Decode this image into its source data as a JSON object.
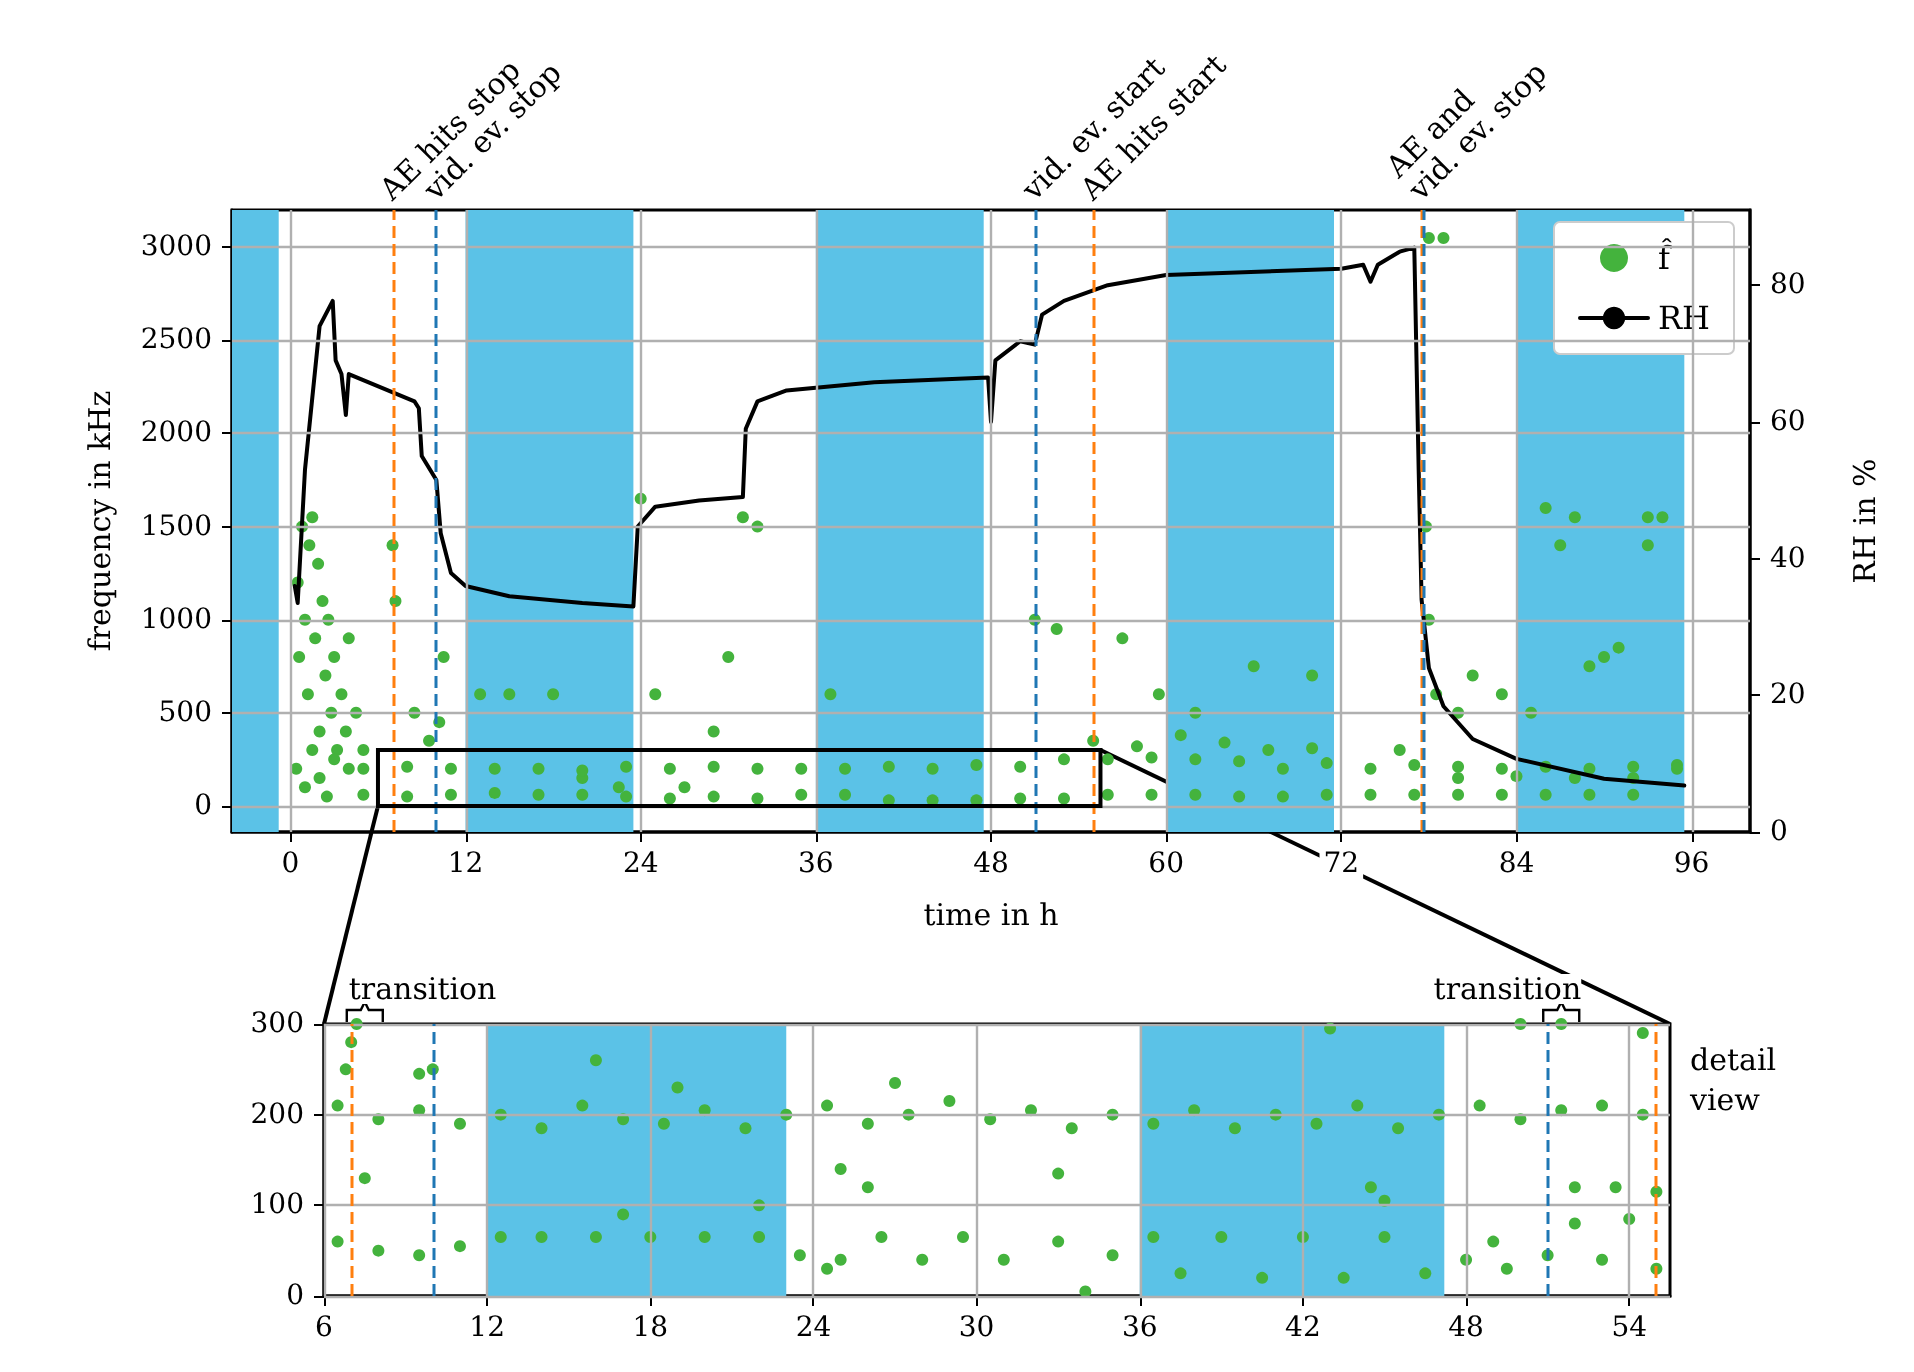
{
  "chart_data": [
    {
      "type": "scatter",
      "xlabel": "time in h",
      "ylabel": "frequency in kHz",
      "y2label": "RH in %",
      "xlim": [
        -4,
        100
      ],
      "xticks": [
        0,
        12,
        24,
        36,
        48,
        60,
        72,
        84,
        96
      ],
      "ylim": [
        -140,
        3200
      ],
      "yticks": [
        0,
        500,
        1000,
        1500,
        2000,
        2500,
        3000
      ],
      "y2lim": [
        0,
        91
      ],
      "y2ticks": [
        0,
        20,
        40,
        60,
        80
      ],
      "grid": true,
      "legend": "top right",
      "bands": [
        {
          "axis": "x",
          "from": -4,
          "to": -0.8,
          "color": "#5bc2e7"
        },
        {
          "axis": "x",
          "from": 12,
          "to": 23.5,
          "color": "#5bc2e7"
        },
        {
          "axis": "x",
          "from": 36,
          "to": 47.5,
          "color": "#5bc2e7"
        },
        {
          "axis": "x",
          "from": 60,
          "to": 71.5,
          "color": "#5bc2e7"
        },
        {
          "axis": "x",
          "from": 84,
          "to": 95.5,
          "color": "#5bc2e7"
        }
      ],
      "ref_lines": [
        {
          "axis": "x",
          "value": 7,
          "label": "AE hits stop",
          "color": "#ff7f0e",
          "line_style": "dashed"
        },
        {
          "axis": "x",
          "value": 10,
          "label": "vid. ev. stop",
          "color": "#1f77b4",
          "line_style": "dashed"
        },
        {
          "axis": "x",
          "value": 51,
          "label": "vid. ev. start",
          "color": "#1f77b4",
          "line_style": "dashed"
        },
        {
          "axis": "x",
          "value": 55,
          "label": "AE hits start",
          "color": "#ff7f0e",
          "line_style": "dashed"
        },
        {
          "axis": "x",
          "value": 77.5,
          "label": "AE and\nvid. ev. stop",
          "color": "#ff7f0e",
          "line_style": "dashed"
        },
        {
          "axis": "x",
          "value": 77.6,
          "label": null,
          "color": "#1f77b4",
          "line_style": "dashed"
        }
      ],
      "series": [
        {
          "name": "f̂",
          "marker": "circle",
          "color": "#44b33d",
          "x": [
            0.5,
            0.6,
            0.8,
            1,
            1.2,
            1.3,
            1.5,
            1.7,
            1.9,
            2,
            2.2,
            2.4,
            2.6,
            2.8,
            3,
            3.2,
            3.5,
            3.8,
            4,
            4.5,
            5,
            0.4,
            1,
            2,
            3,
            4,
            1.5,
            2.5,
            7,
            7.2,
            8.5,
            9.5,
            10.2,
            10.5,
            13,
            15,
            18,
            20,
            22.5,
            24,
            25,
            27,
            29,
            30,
            31,
            32,
            37,
            51,
            52.5,
            57,
            59.5,
            62,
            66,
            70,
            76,
            78,
            79,
            77.8,
            78,
            78.5,
            80,
            81,
            83,
            86,
            87,
            88,
            89,
            91,
            93,
            93,
            85,
            90,
            94,
            5,
            8,
            11,
            14,
            17,
            20,
            23,
            26,
            29,
            32,
            35,
            38,
            41,
            44,
            47,
            50,
            53,
            56,
            59,
            62,
            65,
            68,
            71,
            74,
            77,
            80,
            83,
            86,
            89,
            92,
            95,
            5,
            8,
            11,
            14,
            17,
            20,
            23,
            26,
            29,
            32,
            35,
            38,
            41,
            44,
            47,
            50,
            53,
            56,
            59,
            62,
            65,
            68,
            71,
            74,
            77,
            80,
            83,
            86,
            89,
            92,
            95,
            55,
            58,
            61,
            64,
            67,
            70,
            80,
            84,
            88,
            92
          ],
          "values": [
            1200,
            800,
            1500,
            1000,
            600,
            1400,
            1550,
            900,
            1300,
            400,
            1100,
            700,
            1000,
            500,
            800,
            300,
            600,
            400,
            900,
            500,
            300,
            200,
            100,
            150,
            250,
            200,
            300,
            50,
            1400,
            1100,
            500,
            350,
            450,
            800,
            600,
            600,
            600,
            150,
            100,
            1650,
            600,
            100,
            400,
            800,
            1550,
            1500,
            600,
            1000,
            950,
            900,
            600,
            500,
            750,
            700,
            300,
            3050,
            3050,
            1500,
            1000,
            600,
            500,
            700,
            600,
            1600,
            1400,
            1550,
            750,
            850,
            1400,
            1550,
            500,
            800,
            1550,
            60,
            50,
            60,
            70,
            60,
            60,
            50,
            40,
            50,
            40,
            60,
            60,
            30,
            30,
            30,
            40,
            40,
            60,
            60,
            60,
            50,
            50,
            60,
            60,
            60,
            60,
            60,
            60,
            60,
            60,
            220,
            200,
            210,
            200,
            200,
            200,
            190,
            210,
            200,
            210,
            200,
            200,
            200,
            210,
            200,
            220,
            210,
            250,
            250,
            260,
            250,
            240,
            200,
            230,
            200,
            220,
            210,
            200,
            210,
            200,
            210,
            200,
            350,
            320,
            380,
            340,
            300,
            310,
            150,
            160,
            150,
            150
          ]
        },
        {
          "name": "RH",
          "type": "line",
          "axis": "y2",
          "marker": "none",
          "color": "#000000",
          "x": [
            0.3,
            0.5,
            1,
            2,
            2.9,
            3.1,
            3.5,
            3.8,
            4,
            8.5,
            8.8,
            9,
            10,
            10.3,
            11,
            12,
            15,
            20,
            23.5,
            23.8,
            25,
            28,
            31,
            31.2,
            32,
            34,
            40,
            47.8,
            48,
            48.3,
            50,
            51,
            51.5,
            53,
            56,
            60,
            72,
            73.5,
            74,
            74.5,
            76,
            77,
            77.3,
            77.5,
            78,
            79,
            81,
            84,
            90,
            95.5
          ],
          "values": [
            36,
            33.5,
            53,
            74,
            77.7,
            69,
            67,
            61,
            67,
            63,
            62,
            55,
            51.5,
            43.7,
            37.9,
            36,
            34.5,
            33.5,
            33,
            44.7,
            47.6,
            48.5,
            49,
            59,
            63,
            64.6,
            65.8,
            66.5,
            60,
            69,
            71.8,
            71.3,
            75.7,
            77.7,
            80,
            81.5,
            82.4,
            83,
            80.5,
            83,
            84.9,
            85.5,
            53,
            34,
            24,
            18.4,
            13.6,
            10.7,
            7.8,
            6.8
          ]
        }
      ]
    },
    {
      "type": "scatter",
      "xlim": [
        6,
        55.5
      ],
      "xticks": [
        6,
        12,
        18,
        24,
        30,
        36,
        42,
        48,
        54
      ],
      "ylim": [
        0,
        300
      ],
      "yticks": [
        0,
        100,
        200,
        300
      ],
      "grid": true,
      "annotations": [
        {
          "text": "transition",
          "x": 7.5,
          "y": 300
        },
        {
          "text": "transition",
          "x": 51.5,
          "y": 300
        },
        "detail\nview"
      ],
      "bands": [
        {
          "axis": "x",
          "from": 12,
          "to": 23,
          "color": "#5bc2e7"
        },
        {
          "axis": "x",
          "from": 36,
          "to": 47.2,
          "color": "#5bc2e7"
        }
      ],
      "ref_lines": [
        {
          "axis": "x",
          "value": 7,
          "label": null,
          "color": "#ff7f0e",
          "line_style": "dashed"
        },
        {
          "axis": "x",
          "value": 10,
          "label": null,
          "color": "#1f77b4",
          "line_style": "dashed"
        },
        {
          "axis": "x",
          "value": 51,
          "label": null,
          "color": "#1f77b4",
          "line_style": "dashed"
        },
        {
          "axis": "x",
          "value": 55,
          "label": null,
          "color": "#ff7f0e",
          "line_style": "dashed"
        }
      ],
      "series": [
        {
          "marker": "circle",
          "color": "#44b33d",
          "x": [
            6.5,
            8,
            9.5,
            11,
            12.5,
            14,
            15.5,
            17,
            18.5,
            20,
            21.5,
            23,
            24.5,
            26,
            27.5,
            29,
            30.5,
            32,
            33.5,
            35,
            36.5,
            38,
            39.5,
            41,
            42.5,
            44,
            45.5,
            47,
            48.5,
            50,
            51.5,
            53,
            54.5,
            6.5,
            8,
            9.5,
            11,
            12.5,
            14,
            16,
            18,
            20,
            22,
            23.5,
            25,
            26.5,
            28,
            29.5,
            31,
            33,
            35,
            36.5,
            37.5,
            39,
            40.5,
            42,
            43.5,
            45,
            46.5,
            48,
            49.5,
            51,
            52,
            53,
            54,
            55,
            52,
            53.5,
            55,
            7,
            7.2,
            6.8,
            7.5,
            10,
            9.5,
            16,
            19,
            25,
            26,
            24.5,
            33,
            34,
            44.5,
            45,
            43,
            50,
            51.5,
            54.5,
            49,
            27,
            22,
            17
          ],
          "values": [
            210,
            195,
            205,
            190,
            200,
            185,
            210,
            195,
            190,
            205,
            185,
            200,
            210,
            190,
            200,
            215,
            195,
            205,
            185,
            200,
            190,
            205,
            185,
            200,
            190,
            210,
            185,
            200,
            210,
            195,
            205,
            210,
            200,
            60,
            50,
            45,
            55,
            65,
            65,
            65,
            65,
            65,
            65,
            45,
            40,
            65,
            40,
            65,
            40,
            60,
            45,
            65,
            25,
            65,
            20,
            65,
            20,
            65,
            25,
            40,
            30,
            45,
            80,
            40,
            85,
            30,
            120,
            120,
            115,
            280,
            300,
            250,
            130,
            250,
            245,
            260,
            230,
            140,
            120,
            30,
            135,
            5,
            120,
            105,
            295,
            300,
            300,
            290,
            60,
            235,
            100,
            90
          ]
        }
      ]
    }
  ]
}
